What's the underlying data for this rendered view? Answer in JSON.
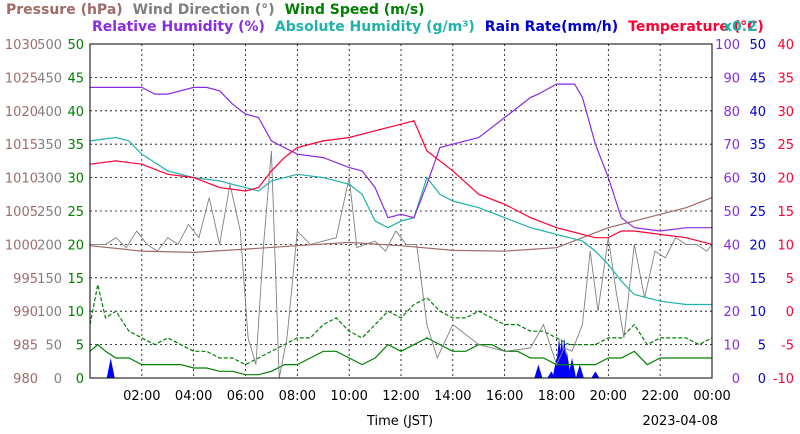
{
  "chart_data": {
    "type": "line",
    "date": "2023-04-08",
    "xlabel": "Time (JST)",
    "x_ticks": [
      "02:00",
      "04:00",
      "06:00",
      "08:00",
      "10:00",
      "12:00",
      "14:00",
      "16:00",
      "18:00",
      "20:00",
      "22:00",
      "00:00"
    ],
    "x_range_hours": [
      0,
      24
    ],
    "grid": true,
    "legend_top": [
      {
        "text": "Pressure (hPa)",
        "color": "#a06a6a"
      },
      {
        "text": "Wind Direction (°)",
        "color": "#808080"
      },
      {
        "text": "Wind Speed (m/s)",
        "color": "#008000"
      }
    ],
    "legend_second": [
      {
        "text": "Relative Humidity (%)",
        "color": "#8a2be2"
      },
      {
        "text": "Absolute Humidity (g/m³)",
        "color": "#20b2aa"
      },
      {
        "text": "Rain Rate(mm/h)",
        "color": "#0000cd"
      },
      {
        "text": "Temperature (°C)",
        "color": "#ff0033"
      }
    ],
    "abs_humidity_factor_label": "x0.2",
    "axes": {
      "pressure": {
        "color": "#a06a6a",
        "ticks": [
          "1030",
          "1025",
          "1020",
          "1015",
          "1010",
          "1005",
          "1000",
          "995",
          "990",
          "985",
          "980"
        ],
        "range": [
          980,
          1030
        ]
      },
      "wind_direction": {
        "color": "#808080",
        "ticks": [
          "500",
          "450",
          "400",
          "350",
          "300",
          "250",
          "200",
          "150",
          "100",
          "50",
          "0"
        ],
        "range": [
          0,
          500
        ]
      },
      "wind_speed": {
        "color": "#008000",
        "ticks": [
          "50",
          "45",
          "40",
          "35",
          "30",
          "25",
          "20",
          "15",
          "10",
          "5",
          "0"
        ],
        "range": [
          0,
          50
        ]
      },
      "relative_humidity": {
        "color": "#8a2be2",
        "ticks": [
          "100",
          "90",
          "80",
          "70",
          "60",
          "50",
          "40",
          "30",
          "20",
          "10",
          "0"
        ],
        "range": [
          0,
          100
        ]
      },
      "rain_rate": {
        "color": "#0000cd",
        "ticks": [
          "50",
          "45",
          "40",
          "35",
          "30",
          "25",
          "20",
          "15",
          "10",
          "5",
          "0"
        ],
        "range": [
          0,
          50
        ]
      },
      "temperature": {
        "color": "#ff0033",
        "ticks": [
          "40",
          "35",
          "30",
          "25",
          "20",
          "15",
          "10",
          "5",
          "0",
          "-5",
          "-10"
        ],
        "range": [
          -10,
          40
        ]
      }
    },
    "series": [
      {
        "name": "Relative Humidity (%)",
        "axis": "relative_humidity",
        "color": "#8a2be2",
        "x": [
          0,
          1,
          2,
          2.5,
          3,
          4,
          4.5,
          5,
          5.5,
          6,
          6.5,
          7,
          8,
          9,
          10,
          10.5,
          11,
          11.5,
          12,
          12.5,
          13,
          13.5,
          14,
          15,
          16,
          17,
          17.3,
          18,
          18.3,
          18.7,
          19,
          19.5,
          20,
          20.5,
          21,
          22,
          23,
          24
        ],
        "y": [
          87,
          87,
          87,
          85,
          85,
          87,
          87,
          86,
          82,
          79,
          78,
          71,
          67,
          66,
          63,
          62,
          57,
          48,
          49,
          48,
          58,
          69,
          70,
          72,
          78,
          84,
          85,
          88,
          88,
          88,
          84,
          70,
          60,
          48,
          45,
          44,
          45,
          45
        ]
      },
      {
        "name": "Absolute Humidity (g/m³)",
        "axis": "relative_humidity",
        "color": "#20b2aa",
        "x": [
          0,
          1,
          1.5,
          2,
          3,
          4,
          5,
          5.5,
          6,
          6.5,
          7,
          8,
          9,
          10,
          10.5,
          11,
          11.5,
          12,
          12.5,
          13,
          13.5,
          14,
          15,
          16,
          17,
          17.5,
          18,
          18.5,
          19,
          19.5,
          20,
          20.5,
          21,
          22,
          23,
          24
        ],
        "y": [
          71,
          72,
          71,
          67,
          62,
          60,
          59,
          58,
          57,
          56,
          59,
          61,
          60,
          58,
          55,
          47,
          45,
          47,
          48,
          60,
          55,
          53,
          51,
          48,
          45,
          44,
          43,
          42,
          41,
          38,
          34,
          29,
          25,
          23,
          22,
          22
        ]
      },
      {
        "name": "Temperature (°C)",
        "axis": "temperature",
        "color": "#ff0033",
        "x": [
          0,
          1,
          2,
          3,
          4,
          5,
          6,
          6.5,
          7,
          7.5,
          8,
          9,
          10,
          11,
          12,
          12.5,
          13,
          14,
          15,
          16,
          17,
          18,
          18.5,
          19,
          19.5,
          20,
          20.5,
          21,
          22,
          23,
          24
        ],
        "y": [
          22,
          22.5,
          22,
          20.5,
          20,
          18.5,
          18,
          18.5,
          21,
          23,
          24.5,
          25.5,
          26,
          27,
          28,
          28.5,
          24,
          21,
          17.5,
          16,
          14,
          12.5,
          12,
          11.5,
          11,
          11,
          12,
          12,
          11.5,
          11,
          10
        ]
      },
      {
        "name": "Pressure (hPa)",
        "axis": "pressure",
        "color": "#a06a6a",
        "x": [
          0,
          2,
          4,
          6,
          8,
          10,
          12,
          14,
          16,
          18,
          19,
          20,
          21,
          22,
          23,
          24
        ],
        "y": [
          999.8,
          999,
          998.8,
          999.3,
          999.8,
          1000.3,
          999.8,
          999.1,
          999,
          999.5,
          1001,
          1002.5,
          1003.5,
          1004.5,
          1005.5,
          1007
        ]
      },
      {
        "name": "Wind Direction (°)",
        "axis": "wind_direction",
        "color": "#808080",
        "x": [
          0,
          0.6,
          1,
          1.4,
          1.8,
          2.2,
          2.6,
          3,
          3.4,
          3.8,
          4.2,
          4.6,
          5,
          5.4,
          5.8,
          6.1,
          6.4,
          6.7,
          7.0,
          7.3,
          7.6,
          8,
          8.5,
          9,
          9.5,
          10,
          10.3,
          10.6,
          11,
          11.4,
          11.8,
          12.2,
          12.6,
          13,
          13.4,
          14,
          15,
          16,
          17,
          17.5,
          18,
          18.3,
          18.6,
          19,
          19.3,
          19.6,
          20,
          20.3,
          20.6,
          21,
          21.4,
          21.8,
          22.2,
          22.6,
          23,
          23.4,
          23.8,
          24
        ],
        "y": [
          200,
          200,
          210,
          195,
          220,
          200,
          190,
          210,
          200,
          230,
          210,
          270,
          200,
          290,
          220,
          60,
          20,
          200,
          340,
          0,
          60,
          220,
          200,
          205,
          210,
          300,
          195,
          200,
          205,
          190,
          220,
          200,
          200,
          80,
          30,
          80,
          50,
          40,
          45,
          80,
          20,
          45,
          40,
          80,
          190,
          100,
          210,
          130,
          60,
          200,
          120,
          190,
          180,
          210,
          200,
          200,
          190,
          200
        ]
      },
      {
        "name": "Wind Speed (m/s)",
        "axis": "wind_speed",
        "color": "#008000",
        "x": [
          0,
          0.3,
          0.6,
          1,
          1.5,
          2,
          2.5,
          3,
          3.5,
          4,
          4.5,
          5,
          5.5,
          6,
          6.5,
          7,
          7.5,
          8,
          8.5,
          9,
          9.5,
          10,
          10.5,
          11,
          11.5,
          12,
          12.5,
          13,
          13.5,
          14,
          14.5,
          15,
          15.5,
          16,
          16.5,
          17,
          17.5,
          18,
          18.5,
          19,
          19.5,
          20,
          20.5,
          21,
          21.5,
          22,
          22.5,
          23,
          23.5,
          24
        ],
        "y": [
          4,
          5,
          4,
          3,
          3,
          2,
          2,
          2,
          2,
          1.5,
          1.5,
          1,
          1,
          0.5,
          0.5,
          1,
          2,
          2,
          3,
          4,
          4,
          3,
          2,
          3,
          5,
          4,
          5,
          6,
          5,
          4,
          4,
          5,
          5,
          4,
          4,
          3,
          3,
          2,
          2,
          2,
          2,
          3,
          3,
          4,
          2,
          3,
          3,
          3,
          3,
          3
        ]
      },
      {
        "name": "Wind Gust (m/s)",
        "axis": "wind_speed",
        "color": "#008000",
        "dashed": true,
        "x": [
          0,
          0.3,
          0.6,
          1,
          1.5,
          2,
          2.5,
          3,
          3.5,
          4,
          4.5,
          5,
          5.5,
          6,
          6.5,
          7,
          7.5,
          8,
          8.5,
          9,
          9.5,
          10,
          10.5,
          11,
          11.5,
          12,
          12.5,
          13,
          13.5,
          14,
          14.5,
          15,
          15.5,
          16,
          16.5,
          17,
          17.5,
          18,
          18.5,
          19,
          19.5,
          20,
          20.5,
          21,
          21.5,
          22,
          22.5,
          23,
          23.5,
          24
        ],
        "y": [
          8,
          14,
          9,
          10,
          7,
          6,
          5,
          6,
          5,
          4,
          4,
          3,
          3,
          2,
          3,
          4,
          5,
          6,
          6,
          8,
          9,
          7,
          6,
          8,
          10,
          9,
          11,
          12,
          10,
          9,
          9,
          10,
          9,
          8,
          8,
          7,
          7,
          6,
          5,
          5,
          5,
          6,
          6,
          8,
          5,
          6,
          6,
          6,
          5,
          6
        ]
      },
      {
        "name": "Rain Rate(mm/h)",
        "axis": "rain_rate",
        "color": "#0000ff",
        "bars": true,
        "x": [
          0.8,
          17.3,
          17.8,
          18.0,
          18.1,
          18.2,
          18.3,
          18.4,
          18.6,
          18.9,
          19.5
        ],
        "y": [
          3,
          2,
          1,
          3,
          6,
          6,
          6,
          4,
          3,
          2,
          1
        ]
      }
    ]
  }
}
